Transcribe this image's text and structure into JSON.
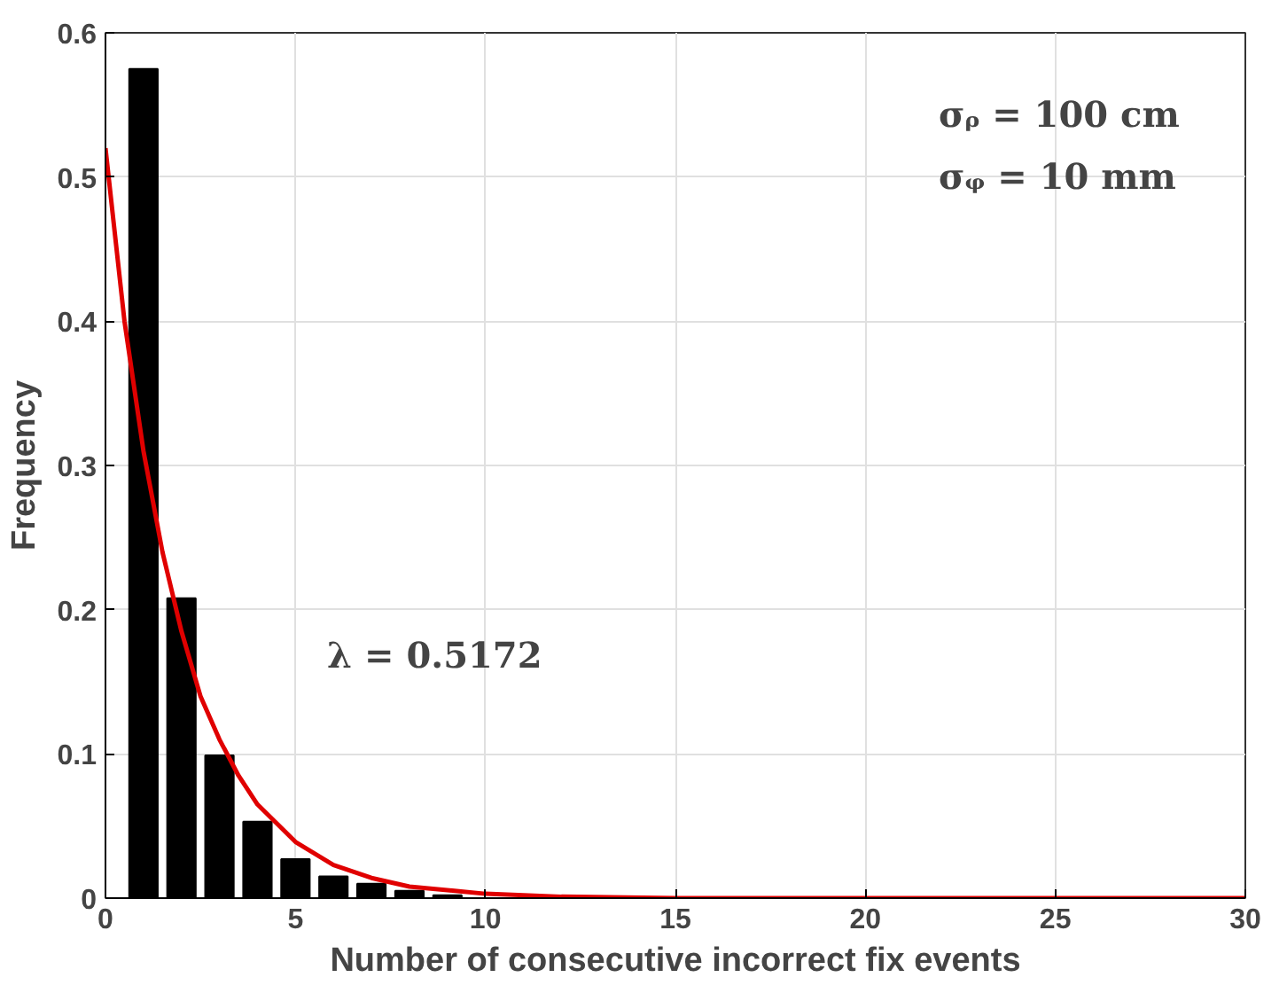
{
  "chart_data": {
    "type": "bar",
    "xlabel": "Number of consecutive incorrect fix events",
    "ylabel": "Frequency",
    "xlim": [
      0,
      30
    ],
    "xticks": [
      0,
      5,
      10,
      15,
      20,
      25,
      30
    ],
    "ylim": [
      0,
      0.6
    ],
    "yticks": [
      0,
      0.1,
      0.2,
      0.3,
      0.4,
      0.5,
      0.6
    ],
    "grid": true,
    "series": [
      {
        "color": "#000000",
        "x": [
          1,
          2,
          3,
          4,
          5,
          6,
          7,
          8,
          9
        ],
        "values": [
          0.575,
          0.208,
          0.099,
          0.053,
          0.027,
          0.015,
          0.01,
          0.005,
          0.002
        ]
      },
      {
        "type": "line",
        "color": "#e00000",
        "x": [
          0,
          0.5,
          1,
          1.5,
          2,
          2.5,
          3,
          3.5,
          4,
          5,
          6,
          7,
          8,
          10,
          12,
          15,
          20,
          25,
          30
        ],
        "values": [
          0.52,
          0.4,
          0.31,
          0.24,
          0.185,
          0.14,
          0.11,
          0.085,
          0.065,
          0.039,
          0.023,
          0.014,
          0.008,
          0.003,
          0.001,
          0,
          0,
          0,
          0
        ]
      }
    ],
    "annotations": [
      "σᵨ = 100 cm",
      "σᵩ = 10 mm",
      "λ = 0.5172"
    ]
  }
}
